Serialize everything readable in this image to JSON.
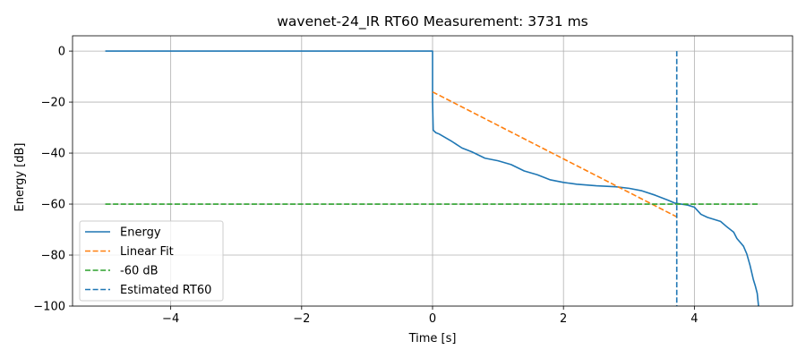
{
  "chart_data": {
    "type": "line",
    "title": "wavenet-24_IR RT60 Measurement: 3731 ms",
    "xlabel": "Time [s]",
    "ylabel": "Energy [dB]",
    "xlim": [
      -5.5,
      5.5
    ],
    "ylim": [
      -100,
      6
    ],
    "xticks": [
      -4,
      -2,
      0,
      2,
      4
    ],
    "xtick_labels": [
      "−4",
      "−2",
      "0",
      "2",
      "4"
    ],
    "yticks": [
      0,
      -20,
      -40,
      -60,
      -80,
      -100
    ],
    "ytick_labels": [
      "0",
      "−20",
      "−40",
      "−60",
      "−80",
      "−100"
    ],
    "grid": true,
    "legend_position": "lower-left",
    "series": [
      {
        "name": "Energy",
        "color": "#1f77b4",
        "style": "solid",
        "x": [
          -5.0,
          -0.01,
          0.0,
          0.0,
          0.01,
          0.05,
          0.1,
          0.2,
          0.3,
          0.45,
          0.6,
          0.8,
          1.0,
          1.2,
          1.4,
          1.6,
          1.8,
          2.0,
          2.2,
          2.5,
          2.8,
          3.0,
          3.2,
          3.4,
          3.6,
          3.7,
          3.8,
          3.9,
          4.0,
          4.1,
          4.2,
          4.3,
          4.4,
          4.5,
          4.6,
          4.65,
          4.7,
          4.75,
          4.8,
          4.85,
          4.9,
          4.93,
          4.96,
          4.98
        ],
        "y": [
          0,
          0,
          0,
          -20,
          -31,
          -32,
          -32.5,
          -34,
          -35.5,
          -38,
          -39.5,
          -42,
          -43,
          -44.5,
          -47,
          -48.5,
          -50.5,
          -51.5,
          -52.2,
          -52.8,
          -53.2,
          -53.8,
          -54.8,
          -56.5,
          -58.5,
          -59.6,
          -60,
          -60.4,
          -61.2,
          -64,
          -65.2,
          -66,
          -66.8,
          -69,
          -71,
          -73.5,
          -75,
          -76.5,
          -79.5,
          -84,
          -89.5,
          -92,
          -95,
          -100
        ]
      },
      {
        "name": "Linear Fit",
        "color": "#ff7f0e",
        "style": "dashed",
        "x": [
          0,
          3.731
        ],
        "y": [
          -16,
          -65
        ]
      },
      {
        "name": "-60 dB",
        "color": "#2ca02c",
        "style": "dashed",
        "x": [
          -5.0,
          4.98
        ],
        "y": [
          -60,
          -60
        ]
      },
      {
        "name": "Estimated RT60",
        "color": "#1f77b4",
        "style": "dashed",
        "x": [
          3.731,
          3.731
        ],
        "y": [
          0,
          -100
        ]
      }
    ]
  }
}
